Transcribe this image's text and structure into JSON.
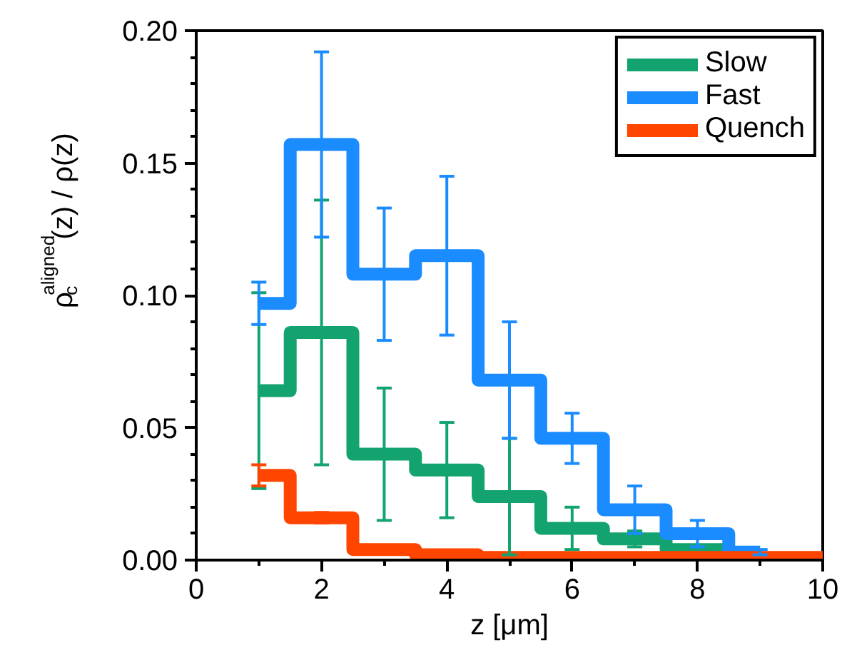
{
  "chart_data": {
    "type": "step",
    "xlabel": "z [μm]",
    "ylabel": "ρ$_{c}$$^{aligned}$(z) / ρ(z)",
    "xlim": [
      0,
      10
    ],
    "ylim": [
      0,
      0.2
    ],
    "xticks": [
      0,
      2,
      4,
      6,
      8,
      10
    ],
    "yticks": [
      {
        "value": 0,
        "label": "0.00"
      },
      {
        "value": 0.05,
        "label": "0.05"
      },
      {
        "value": 0.1,
        "label": "0.10"
      },
      {
        "value": 0.15,
        "label": "0.15"
      },
      {
        "value": 0.2,
        "label": "0.20"
      }
    ],
    "legend": "top right",
    "grid": false,
    "series": [
      {
        "name": "Slow",
        "color": "#12a36f",
        "x": [
          1,
          2,
          3,
          4,
          5,
          6,
          7,
          8,
          9
        ],
        "values": [
          0.064,
          0.086,
          0.04,
          0.034,
          0.024,
          0.012,
          0.008,
          0.004,
          0.002
        ],
        "errors": [
          0.037,
          0.05,
          0.025,
          0.018,
          0.022,
          0.008,
          0.003,
          null,
          null
        ]
      },
      {
        "name": "Fast",
        "color": "#1a8cff",
        "x": [
          1,
          2,
          3,
          4,
          5,
          6,
          7,
          8,
          9
        ],
        "values": [
          0.097,
          0.157,
          0.108,
          0.115,
          0.068,
          0.046,
          0.019,
          0.01,
          0.003
        ],
        "errors": [
          0.008,
          0.035,
          0.025,
          0.03,
          0.022,
          0.0095,
          0.009,
          0.005,
          0.001
        ]
      },
      {
        "name": "Quench",
        "color": "#ff4500",
        "x": [
          1,
          2,
          3,
          4,
          5,
          6,
          7,
          8,
          9,
          10
        ],
        "values": [
          0.032,
          0.016,
          0.004,
          0.002,
          0.001,
          0.001,
          0.001,
          0.001,
          0.001,
          0.001
        ],
        "errors": [
          0.004,
          0.002,
          null,
          null,
          null,
          null,
          null,
          null,
          null,
          null
        ]
      }
    ]
  }
}
